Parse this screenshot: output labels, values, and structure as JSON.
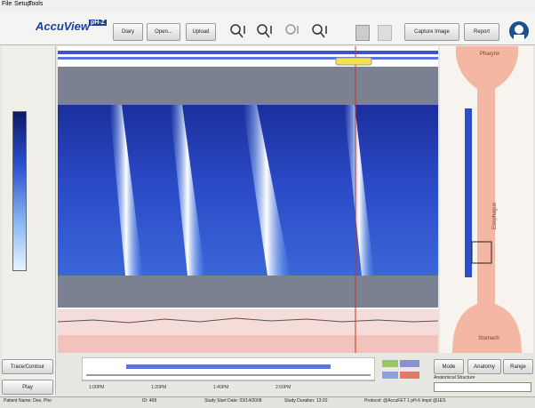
{
  "menu": [
    "File",
    "Setup",
    "Tools"
  ],
  "logo": {
    "name": "AccuView",
    "badge": "pH-Z"
  },
  "toolbar": [
    "Diary",
    "Open...",
    "Upload",
    "Capture Image",
    "Report"
  ],
  "anatomy": {
    "top": "Pharynx",
    "middle": "Esophagus",
    "bottom": "Stomach"
  },
  "left_buttons": [
    "Trace/Contour",
    "Play"
  ],
  "right_buttons": [
    "Mode",
    "Anatomy",
    "Range"
  ],
  "anatomical_label": "Anatomical Structure",
  "timeline_ticks": [
    "1:00PM",
    "1:20PM",
    "1:40PM",
    "2:00PM"
  ],
  "status": [
    "Patient Name: Doe, Pho",
    "ID: 468",
    "Study Start Date: 03/14/2008",
    "Study Duration: 13:20",
    "Protocol: @AccuFET 1 pH-6 Impd @1ES"
  ]
}
